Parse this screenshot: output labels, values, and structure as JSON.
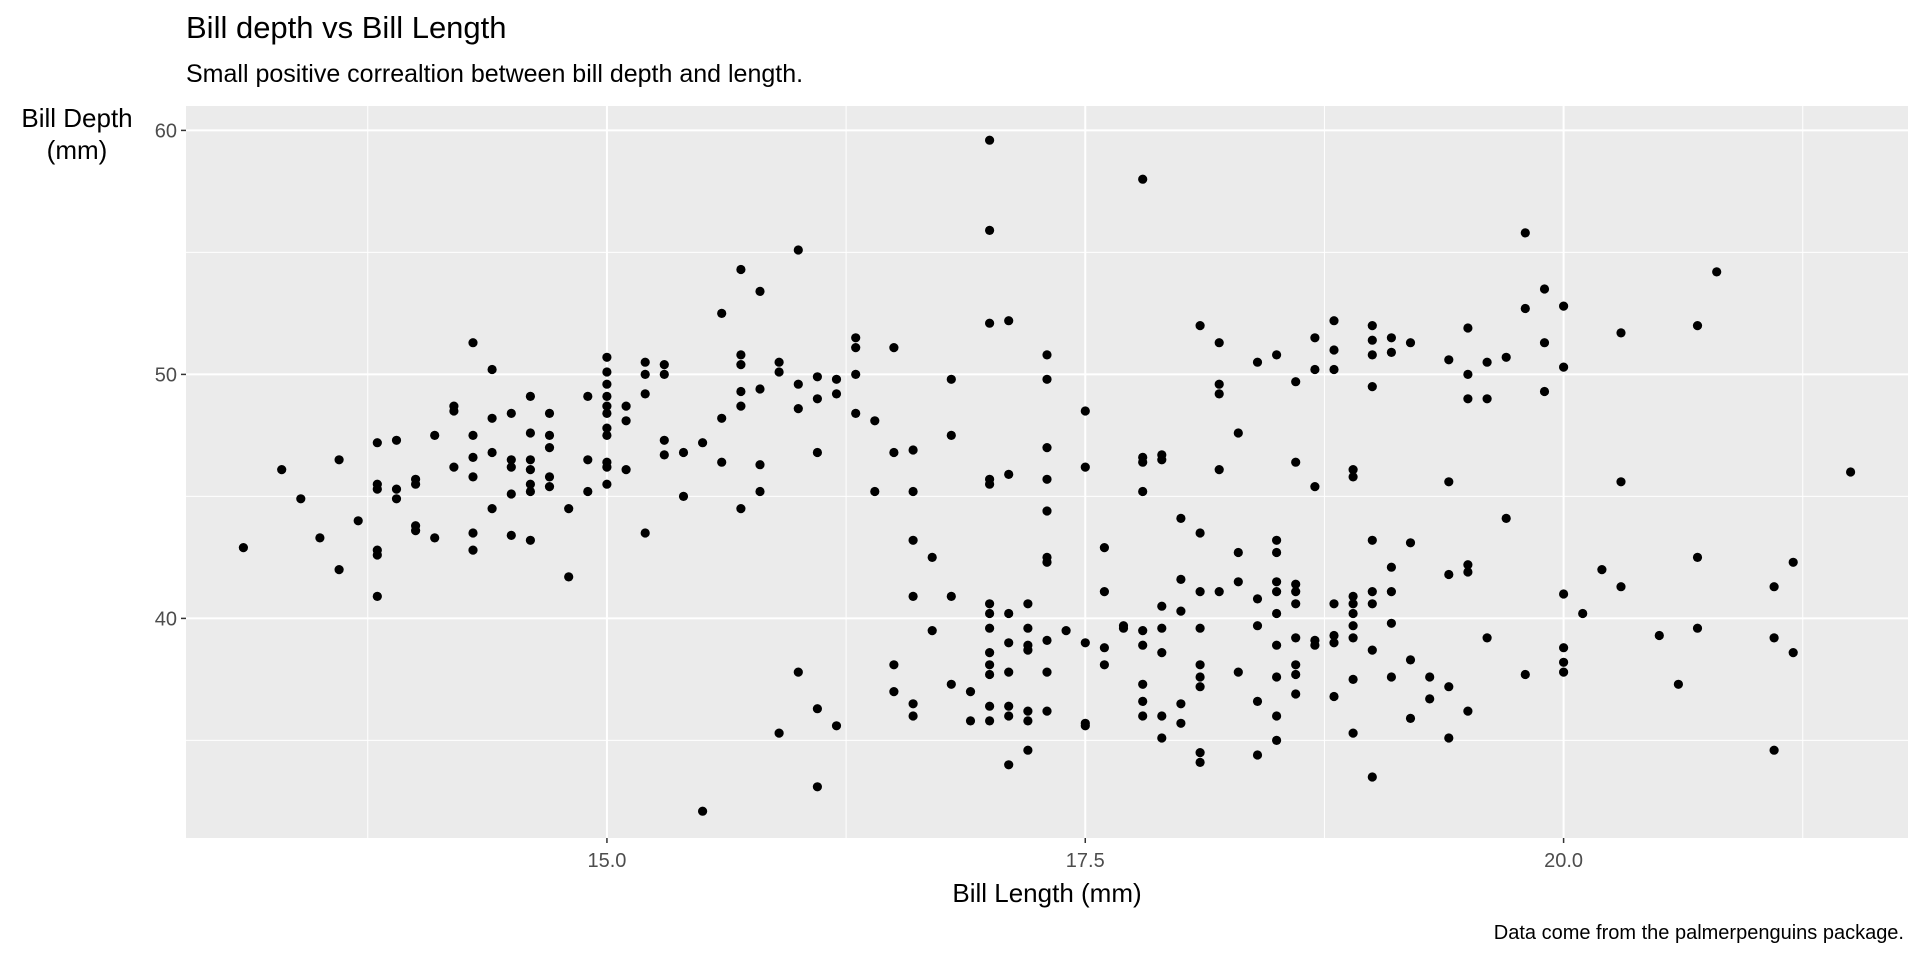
{
  "chart_data": {
    "type": "scatter",
    "title": "Bill depth vs Bill Length",
    "subtitle": "Small positive correaltion between bill depth and length.",
    "xlabel": "Bill Length (mm)",
    "ylabel": "Bill Depth\n(mm)",
    "caption": "Data come from the palmerpenguins package.",
    "xlim": [
      12.8,
      21.8
    ],
    "ylim": [
      31,
      61
    ],
    "xticks": [
      15.0,
      17.5,
      20.0
    ],
    "xtick_labels": [
      "15.0",
      "17.5",
      "20.0"
    ],
    "yticks": [
      40,
      50,
      60
    ],
    "ytick_labels": [
      "40",
      "50",
      "60"
    ],
    "grid": true,
    "colors": {
      "panel_bg": "#ebebeb",
      "grid": "#ffffff",
      "point": "#000000",
      "tick_text": "#4d4d4d"
    },
    "points": [
      [
        13.1,
        42.9
      ],
      [
        13.3,
        46.1
      ],
      [
        13.4,
        44.9
      ],
      [
        13.5,
        43.3
      ],
      [
        13.6,
        46.5
      ],
      [
        13.6,
        42.0
      ],
      [
        13.7,
        44.0
      ],
      [
        13.8,
        47.2
      ],
      [
        13.8,
        45.5
      ],
      [
        13.8,
        45.3
      ],
      [
        13.8,
        42.8
      ],
      [
        13.8,
        42.6
      ],
      [
        13.8,
        40.9
      ],
      [
        13.9,
        47.3
      ],
      [
        13.9,
        45.3
      ],
      [
        13.9,
        44.9
      ],
      [
        14.0,
        45.7
      ],
      [
        14.0,
        45.5
      ],
      [
        14.0,
        43.8
      ],
      [
        14.0,
        43.6
      ],
      [
        14.1,
        47.5
      ],
      [
        14.1,
        43.3
      ],
      [
        14.2,
        48.7
      ],
      [
        14.2,
        48.5
      ],
      [
        14.2,
        46.2
      ],
      [
        14.3,
        51.3
      ],
      [
        14.3,
        47.5
      ],
      [
        14.3,
        46.6
      ],
      [
        14.3,
        45.8
      ],
      [
        14.3,
        43.5
      ],
      [
        14.3,
        42.8
      ],
      [
        14.4,
        50.2
      ],
      [
        14.4,
        48.2
      ],
      [
        14.4,
        46.8
      ],
      [
        14.4,
        44.5
      ],
      [
        14.5,
        48.4
      ],
      [
        14.5,
        46.5
      ],
      [
        14.5,
        46.2
      ],
      [
        14.5,
        45.1
      ],
      [
        14.5,
        43.4
      ],
      [
        14.6,
        49.1
      ],
      [
        14.6,
        47.6
      ],
      [
        14.6,
        46.5
      ],
      [
        14.6,
        46.1
      ],
      [
        14.6,
        45.5
      ],
      [
        14.6,
        45.2
      ],
      [
        14.6,
        43.2
      ],
      [
        14.7,
        48.4
      ],
      [
        14.7,
        47.5
      ],
      [
        14.7,
        47.0
      ],
      [
        14.7,
        45.8
      ],
      [
        14.7,
        45.4
      ],
      [
        14.8,
        44.5
      ],
      [
        14.8,
        41.7
      ],
      [
        14.9,
        49.1
      ],
      [
        14.9,
        46.5
      ],
      [
        14.9,
        45.2
      ],
      [
        15.0,
        50.7
      ],
      [
        15.0,
        50.1
      ],
      [
        15.0,
        49.6
      ],
      [
        15.0,
        49.1
      ],
      [
        15.0,
        48.4
      ],
      [
        15.0,
        47.8
      ],
      [
        15.0,
        47.5
      ],
      [
        15.0,
        46.4
      ],
      [
        15.0,
        45.5
      ],
      [
        15.0,
        46.2
      ],
      [
        15.0,
        48.7
      ],
      [
        15.1,
        48.7
      ],
      [
        15.1,
        48.1
      ],
      [
        15.1,
        46.1
      ],
      [
        15.2,
        50.5
      ],
      [
        15.2,
        50.0
      ],
      [
        15.2,
        49.2
      ],
      [
        15.2,
        43.5
      ],
      [
        15.3,
        50.4
      ],
      [
        15.3,
        50.0
      ],
      [
        15.3,
        47.3
      ],
      [
        15.3,
        46.7
      ],
      [
        15.4,
        46.8
      ],
      [
        15.4,
        45.0
      ],
      [
        15.5,
        47.2
      ],
      [
        15.5,
        32.1
      ],
      [
        15.6,
        52.5
      ],
      [
        15.6,
        48.2
      ],
      [
        15.6,
        46.4
      ],
      [
        15.7,
        54.3
      ],
      [
        15.7,
        50.8
      ],
      [
        15.7,
        50.4
      ],
      [
        15.7,
        49.3
      ],
      [
        15.7,
        48.7
      ],
      [
        15.7,
        44.5
      ],
      [
        15.8,
        53.4
      ],
      [
        15.8,
        49.4
      ],
      [
        15.8,
        46.3
      ],
      [
        15.8,
        45.2
      ],
      [
        15.9,
        50.5
      ],
      [
        15.9,
        50.1
      ],
      [
        15.9,
        35.3
      ],
      [
        16.0,
        55.1
      ],
      [
        16.0,
        49.6
      ],
      [
        16.0,
        48.6
      ],
      [
        16.0,
        37.8
      ],
      [
        16.1,
        49.9
      ],
      [
        16.1,
        49.0
      ],
      [
        16.1,
        46.8
      ],
      [
        16.1,
        36.3
      ],
      [
        16.1,
        33.1
      ],
      [
        16.2,
        49.8
      ],
      [
        16.2,
        49.2
      ],
      [
        16.2,
        35.6
      ],
      [
        16.3,
        51.5
      ],
      [
        16.3,
        51.1
      ],
      [
        16.3,
        50.0
      ],
      [
        16.3,
        48.4
      ],
      [
        16.4,
        48.1
      ],
      [
        16.4,
        45.2
      ],
      [
        16.5,
        51.1
      ],
      [
        16.5,
        46.8
      ],
      [
        16.5,
        38.1
      ],
      [
        16.5,
        37.0
      ],
      [
        16.6,
        46.9
      ],
      [
        16.6,
        45.2
      ],
      [
        16.6,
        43.2
      ],
      [
        16.6,
        40.9
      ],
      [
        16.6,
        36.5
      ],
      [
        16.6,
        36.0
      ],
      [
        16.7,
        42.5
      ],
      [
        16.7,
        39.5
      ],
      [
        16.8,
        49.8
      ],
      [
        16.8,
        47.5
      ],
      [
        16.8,
        40.9
      ],
      [
        16.8,
        37.3
      ],
      [
        16.9,
        37.0
      ],
      [
        16.9,
        35.8
      ],
      [
        17.0,
        59.6
      ],
      [
        17.0,
        55.9
      ],
      [
        17.0,
        52.1
      ],
      [
        17.0,
        45.7
      ],
      [
        17.0,
        45.5
      ],
      [
        17.0,
        40.6
      ],
      [
        17.0,
        40.2
      ],
      [
        17.0,
        39.6
      ],
      [
        17.0,
        38.6
      ],
      [
        17.0,
        38.1
      ],
      [
        17.0,
        37.7
      ],
      [
        17.0,
        36.4
      ],
      [
        17.0,
        35.8
      ],
      [
        17.1,
        52.2
      ],
      [
        17.1,
        45.9
      ],
      [
        17.1,
        40.2
      ],
      [
        17.1,
        39.0
      ],
      [
        17.1,
        37.8
      ],
      [
        17.1,
        36.4
      ],
      [
        17.1,
        36.0
      ],
      [
        17.1,
        34.0
      ],
      [
        17.2,
        40.6
      ],
      [
        17.2,
        39.6
      ],
      [
        17.2,
        38.9
      ],
      [
        17.2,
        38.7
      ],
      [
        17.2,
        36.2
      ],
      [
        17.2,
        35.8
      ],
      [
        17.2,
        34.6
      ],
      [
        17.3,
        50.8
      ],
      [
        17.3,
        49.8
      ],
      [
        17.3,
        47.0
      ],
      [
        17.3,
        45.7
      ],
      [
        17.3,
        44.4
      ],
      [
        17.3,
        42.5
      ],
      [
        17.3,
        42.3
      ],
      [
        17.3,
        39.1
      ],
      [
        17.3,
        37.8
      ],
      [
        17.3,
        36.2
      ],
      [
        17.4,
        39.5
      ],
      [
        17.5,
        48.5
      ],
      [
        17.5,
        46.2
      ],
      [
        17.5,
        39.0
      ],
      [
        17.5,
        35.7
      ],
      [
        17.5,
        35.6
      ],
      [
        17.6,
        42.9
      ],
      [
        17.6,
        41.1
      ],
      [
        17.6,
        38.8
      ],
      [
        17.6,
        38.1
      ],
      [
        17.7,
        39.7
      ],
      [
        17.7,
        39.6
      ],
      [
        17.8,
        58.0
      ],
      [
        17.8,
        46.6
      ],
      [
        17.8,
        46.4
      ],
      [
        17.8,
        45.2
      ],
      [
        17.8,
        39.5
      ],
      [
        17.8,
        38.9
      ],
      [
        17.8,
        37.3
      ],
      [
        17.8,
        36.6
      ],
      [
        17.8,
        36.0
      ],
      [
        17.9,
        46.7
      ],
      [
        17.9,
        46.5
      ],
      [
        17.9,
        40.5
      ],
      [
        17.9,
        39.6
      ],
      [
        17.9,
        38.6
      ],
      [
        17.9,
        36.0
      ],
      [
        17.9,
        35.1
      ],
      [
        18.0,
        44.1
      ],
      [
        18.0,
        41.6
      ],
      [
        18.0,
        40.3
      ],
      [
        18.0,
        36.5
      ],
      [
        18.0,
        35.7
      ],
      [
        18.1,
        52.0
      ],
      [
        18.1,
        43.5
      ],
      [
        18.1,
        41.1
      ],
      [
        18.1,
        39.6
      ],
      [
        18.1,
        38.1
      ],
      [
        18.1,
        37.6
      ],
      [
        18.1,
        37.2
      ],
      [
        18.1,
        34.5
      ],
      [
        18.1,
        34.1
      ],
      [
        18.2,
        51.3
      ],
      [
        18.2,
        49.6
      ],
      [
        18.2,
        49.2
      ],
      [
        18.2,
        46.1
      ],
      [
        18.2,
        41.1
      ],
      [
        18.3,
        47.6
      ],
      [
        18.3,
        42.7
      ],
      [
        18.3,
        41.5
      ],
      [
        18.3,
        37.8
      ],
      [
        18.4,
        50.5
      ],
      [
        18.4,
        40.8
      ],
      [
        18.4,
        39.7
      ],
      [
        18.4,
        36.6
      ],
      [
        18.4,
        34.4
      ],
      [
        18.5,
        50.8
      ],
      [
        18.5,
        43.2
      ],
      [
        18.5,
        42.7
      ],
      [
        18.5,
        41.5
      ],
      [
        18.5,
        41.1
      ],
      [
        18.5,
        40.2
      ],
      [
        18.5,
        38.9
      ],
      [
        18.5,
        37.6
      ],
      [
        18.5,
        36.0
      ],
      [
        18.5,
        35.0
      ],
      [
        18.6,
        49.7
      ],
      [
        18.6,
        46.4
      ],
      [
        18.6,
        41.4
      ],
      [
        18.6,
        41.1
      ],
      [
        18.6,
        40.6
      ],
      [
        18.6,
        39.2
      ],
      [
        18.6,
        38.1
      ],
      [
        18.6,
        37.7
      ],
      [
        18.6,
        36.9
      ],
      [
        18.7,
        51.5
      ],
      [
        18.7,
        50.2
      ],
      [
        18.7,
        45.4
      ],
      [
        18.7,
        39.1
      ],
      [
        18.7,
        38.9
      ],
      [
        18.8,
        52.2
      ],
      [
        18.8,
        51.0
      ],
      [
        18.8,
        50.2
      ],
      [
        18.8,
        40.6
      ],
      [
        18.8,
        39.3
      ],
      [
        18.8,
        39.0
      ],
      [
        18.8,
        36.8
      ],
      [
        18.9,
        46.1
      ],
      [
        18.9,
        45.8
      ],
      [
        18.9,
        40.9
      ],
      [
        18.9,
        40.6
      ],
      [
        18.9,
        40.2
      ],
      [
        18.9,
        39.7
      ],
      [
        18.9,
        39.2
      ],
      [
        18.9,
        37.5
      ],
      [
        18.9,
        35.3
      ],
      [
        19.0,
        52.0
      ],
      [
        19.0,
        51.4
      ],
      [
        19.0,
        50.8
      ],
      [
        19.0,
        49.5
      ],
      [
        19.0,
        43.2
      ],
      [
        19.0,
        41.1
      ],
      [
        19.0,
        40.6
      ],
      [
        19.0,
        38.7
      ],
      [
        19.0,
        33.5
      ],
      [
        19.1,
        51.5
      ],
      [
        19.1,
        50.9
      ],
      [
        19.1,
        42.1
      ],
      [
        19.1,
        41.1
      ],
      [
        19.1,
        39.8
      ],
      [
        19.1,
        37.6
      ],
      [
        19.2,
        51.3
      ],
      [
        19.2,
        43.1
      ],
      [
        19.2,
        38.3
      ],
      [
        19.2,
        35.9
      ],
      [
        19.3,
        37.6
      ],
      [
        19.3,
        36.7
      ],
      [
        19.4,
        50.6
      ],
      [
        19.4,
        45.6
      ],
      [
        19.4,
        41.8
      ],
      [
        19.4,
        37.2
      ],
      [
        19.4,
        35.1
      ],
      [
        19.5,
        51.9
      ],
      [
        19.5,
        50.0
      ],
      [
        19.5,
        49.0
      ],
      [
        19.5,
        42.2
      ],
      [
        19.5,
        41.9
      ],
      [
        19.5,
        36.2
      ],
      [
        19.6,
        50.5
      ],
      [
        19.6,
        49.0
      ],
      [
        19.6,
        39.2
      ],
      [
        19.7,
        50.7
      ],
      [
        19.7,
        44.1
      ],
      [
        19.8,
        55.8
      ],
      [
        19.8,
        52.7
      ],
      [
        19.8,
        37.7
      ],
      [
        19.9,
        53.5
      ],
      [
        19.9,
        51.3
      ],
      [
        19.9,
        49.3
      ],
      [
        20.0,
        52.8
      ],
      [
        20.0,
        50.3
      ],
      [
        20.0,
        41.0
      ],
      [
        20.0,
        38.8
      ],
      [
        20.0,
        38.2
      ],
      [
        20.0,
        37.8
      ],
      [
        20.1,
        40.2
      ],
      [
        20.2,
        42.0
      ],
      [
        20.3,
        51.7
      ],
      [
        20.3,
        45.6
      ],
      [
        20.3,
        41.3
      ],
      [
        20.5,
        39.3
      ],
      [
        20.6,
        37.3
      ],
      [
        20.7,
        52.0
      ],
      [
        20.7,
        42.5
      ],
      [
        20.7,
        39.6
      ],
      [
        20.8,
        54.2
      ],
      [
        21.1,
        41.3
      ],
      [
        21.1,
        39.2
      ],
      [
        21.1,
        34.6
      ],
      [
        21.2,
        42.3
      ],
      [
        21.2,
        38.6
      ],
      [
        21.5,
        46.0
      ]
    ]
  }
}
